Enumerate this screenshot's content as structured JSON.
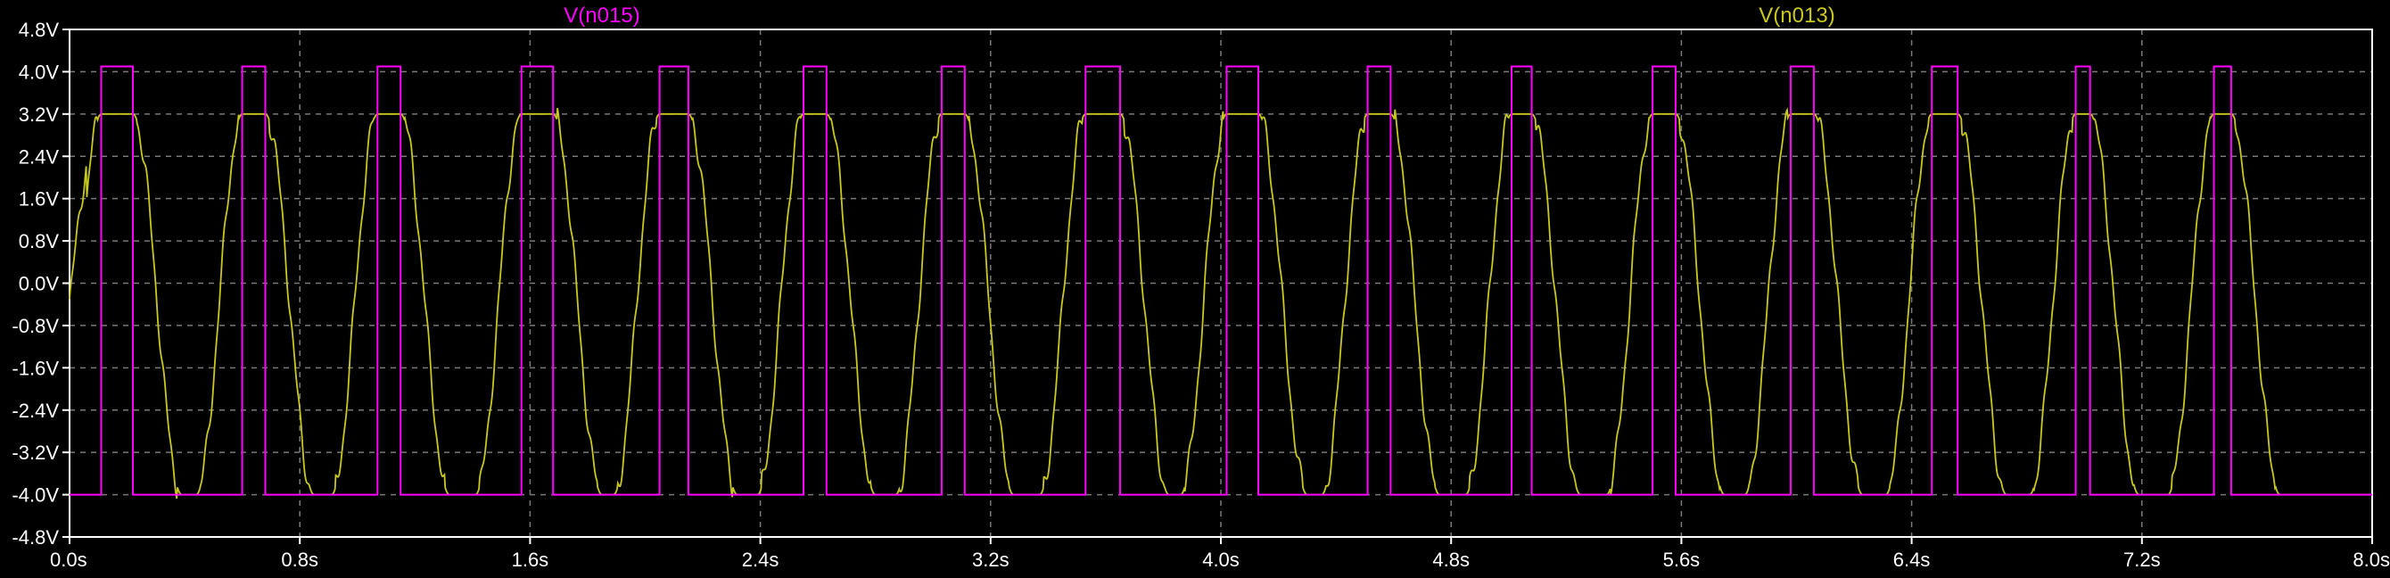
{
  "chart_data": {
    "type": "line",
    "title": "",
    "xlabel": "",
    "ylabel": "",
    "xlim": [
      0,
      8
    ],
    "ylim": [
      -4.8,
      4.8
    ],
    "grid": true,
    "legend": "top-center",
    "background": "#000000",
    "x_ticks": [
      "0.0s",
      "0.8s",
      "1.6s",
      "2.4s",
      "3.2s",
      "4.0s",
      "4.8s",
      "5.6s",
      "6.4s",
      "7.2s",
      "8.0s"
    ],
    "y_ticks": [
      "4.8V",
      "4.0V",
      "3.2V",
      "2.4V",
      "1.6V",
      "0.8V",
      "0.0V",
      "-0.8V",
      "-1.6V",
      "-2.4V",
      "-3.2V",
      "-4.0V",
      "-4.8V"
    ],
    "series": [
      {
        "name": "V(n015)",
        "color": "#ff00ff",
        "kind": "square",
        "high": 4.1,
        "low": -4.0,
        "pulses": [
          [
            0.11,
            0.22
          ],
          [
            0.6,
            0.68
          ],
          [
            1.07,
            1.15
          ],
          [
            1.57,
            1.68
          ],
          [
            2.05,
            2.15
          ],
          [
            2.55,
            2.63
          ],
          [
            3.03,
            3.11
          ],
          [
            3.53,
            3.65
          ],
          [
            4.02,
            4.13
          ],
          [
            4.51,
            4.59
          ],
          [
            5.01,
            5.08
          ],
          [
            5.5,
            5.58
          ],
          [
            5.98,
            6.06
          ],
          [
            6.47,
            6.56
          ],
          [
            6.97,
            7.02
          ],
          [
            7.45,
            7.51
          ]
        ]
      },
      {
        "name": "V(n013)",
        "color": "#c8c81e",
        "kind": "wave",
        "high": 3.2,
        "low": -4.0,
        "peaks": [
          [
            0.11,
            0.22
          ],
          [
            0.6,
            0.68
          ],
          [
            1.07,
            1.15
          ],
          [
            1.57,
            1.68
          ],
          [
            2.05,
            2.15
          ],
          [
            2.55,
            2.63
          ],
          [
            3.03,
            3.11
          ],
          [
            3.53,
            3.65
          ],
          [
            4.02,
            4.13
          ],
          [
            4.51,
            4.59
          ],
          [
            5.01,
            5.08
          ],
          [
            5.5,
            5.58
          ],
          [
            5.98,
            6.06
          ],
          [
            6.47,
            6.56
          ],
          [
            6.97,
            7.02
          ],
          [
            7.45,
            7.51
          ]
        ]
      }
    ]
  }
}
